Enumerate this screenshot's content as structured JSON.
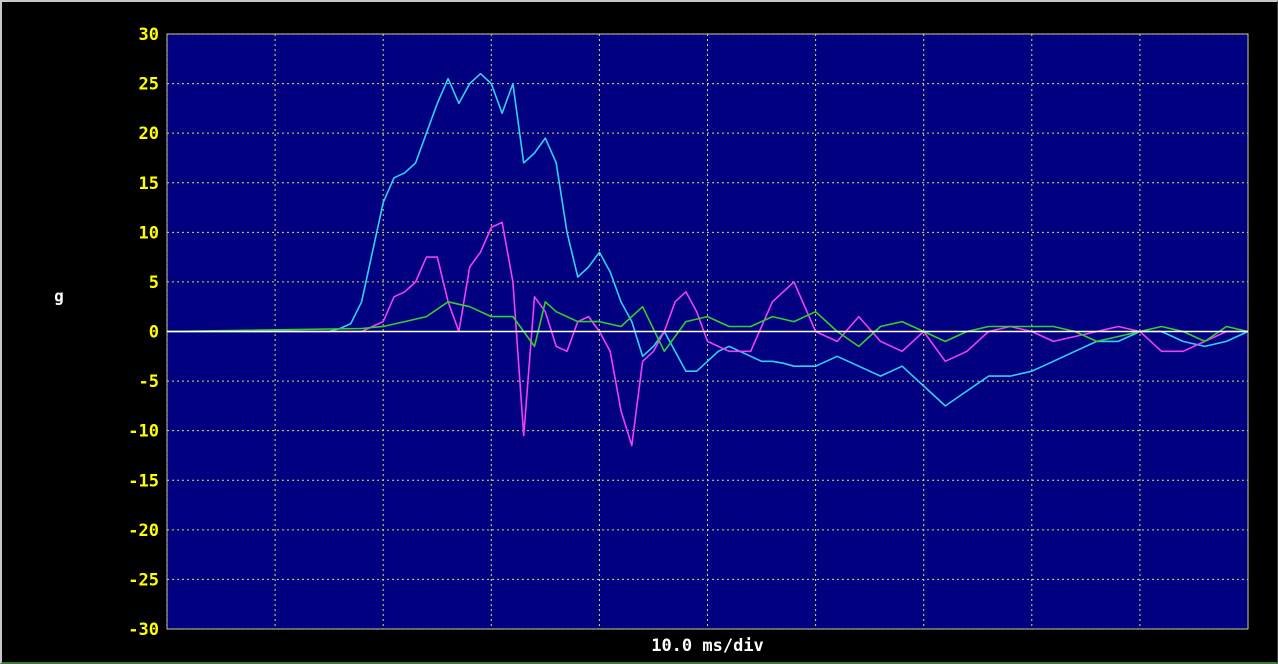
{
  "chart_data": {
    "type": "line",
    "title": "",
    "xlabel": "10.0 ms/div",
    "ylabel": "g",
    "ylim": [
      -30,
      30
    ],
    "y_ticks": [
      "30",
      "25",
      "20",
      "15",
      "10",
      "5",
      "0",
      "-5",
      "-10",
      "-15",
      "-20",
      "-25",
      "-30"
    ],
    "x_divisions": 10,
    "x_range_ms": [
      0,
      100
    ],
    "grid": true,
    "grid_style": "dotted",
    "legend": "none",
    "colors": {
      "background": "#000000",
      "plot_background": "#000080",
      "grid": "#e0e060",
      "tick_label": "#ffff00",
      "axis_label": "#ffffff",
      "zero_line": "#ffffff"
    },
    "series": [
      {
        "color": "#30d0f0",
        "x": [
          0,
          15,
          16,
          17,
          18,
          19,
          20,
          21,
          22,
          23,
          24,
          25,
          26,
          27,
          28,
          29,
          30,
          31,
          32,
          33,
          34,
          35,
          36,
          37,
          38,
          39,
          40,
          41,
          42,
          43,
          44,
          45,
          46,
          47,
          48,
          49,
          50,
          51,
          52,
          53,
          54,
          55,
          56,
          57,
          58,
          60,
          62,
          64,
          66,
          68,
          70,
          72,
          74,
          76,
          78,
          80,
          82,
          84,
          86,
          88,
          90,
          92,
          94,
          96,
          98,
          100
        ],
        "y": [
          0,
          0,
          0.3,
          0.8,
          3,
          8,
          13,
          15.5,
          16,
          17,
          20,
          23,
          25.5,
          23,
          25,
          26,
          25,
          22,
          25,
          17,
          18,
          19.5,
          17,
          10,
          5.5,
          6.5,
          8,
          6,
          3,
          1,
          -2.5,
          -1.5,
          0,
          -2,
          -4,
          -4,
          -3,
          -2,
          -1.5,
          -2,
          -2.5,
          -3,
          -3,
          -3.2,
          -3.5,
          -3.5,
          -2.5,
          -3.5,
          -4.5,
          -3.5,
          -5.5,
          -7.5,
          -6,
          -4.5,
          -4.5,
          -4,
          -3,
          -2,
          -1,
          -1,
          0,
          0,
          -1,
          -1.5,
          -1,
          0
        ]
      },
      {
        "color": "#f040f0",
        "x": [
          0,
          18,
          19,
          20,
          21,
          22,
          23,
          24,
          25,
          26,
          27,
          28,
          29,
          30,
          31,
          32,
          33,
          34,
          35,
          36,
          37,
          38,
          39,
          40,
          41,
          42,
          43,
          44,
          45,
          46,
          47,
          48,
          49,
          50,
          52,
          54,
          56,
          58,
          60,
          62,
          64,
          66,
          68,
          70,
          72,
          74,
          76,
          78,
          80,
          82,
          84,
          86,
          88,
          90,
          92,
          94,
          96,
          98,
          100
        ],
        "y": [
          0,
          0,
          0.5,
          1,
          3.5,
          4,
          5,
          7.5,
          7.5,
          3,
          0,
          6.5,
          8,
          10.5,
          11,
          5,
          -10.5,
          3.5,
          2,
          -1.5,
          -2,
          1,
          1.5,
          0,
          -2,
          -8,
          -11.5,
          -3,
          -2,
          0,
          3,
          4,
          2,
          -1,
          -2,
          -2,
          3,
          5,
          0,
          -1,
          1.5,
          -1,
          -2,
          0,
          -3,
          -2,
          0,
          0.5,
          0,
          -1,
          -0.5,
          0,
          0.5,
          0,
          -2,
          -2,
          -1,
          0,
          0
        ]
      },
      {
        "color": "#30d030",
        "x": [
          0,
          18,
          20,
          22,
          24,
          26,
          28,
          30,
          32,
          34,
          35,
          36,
          38,
          40,
          42,
          44,
          46,
          48,
          50,
          52,
          54,
          56,
          58,
          60,
          62,
          64,
          66,
          68,
          70,
          72,
          74,
          76,
          78,
          80,
          82,
          84,
          86,
          88,
          90,
          92,
          94,
          96,
          98,
          100
        ],
        "y": [
          0,
          0.3,
          0.5,
          1,
          1.5,
          3,
          2.5,
          1.5,
          1.5,
          -1.5,
          3,
          2,
          1,
          1,
          0.5,
          2.5,
          -2,
          1,
          1.5,
          0.5,
          0.5,
          1.5,
          1,
          2,
          0,
          -1.5,
          0.5,
          1,
          0,
          -1,
          0,
          0.5,
          0.5,
          0.5,
          0.5,
          0,
          -1,
          -0.5,
          0,
          0.5,
          0,
          -1,
          0.5,
          0
        ]
      }
    ]
  }
}
